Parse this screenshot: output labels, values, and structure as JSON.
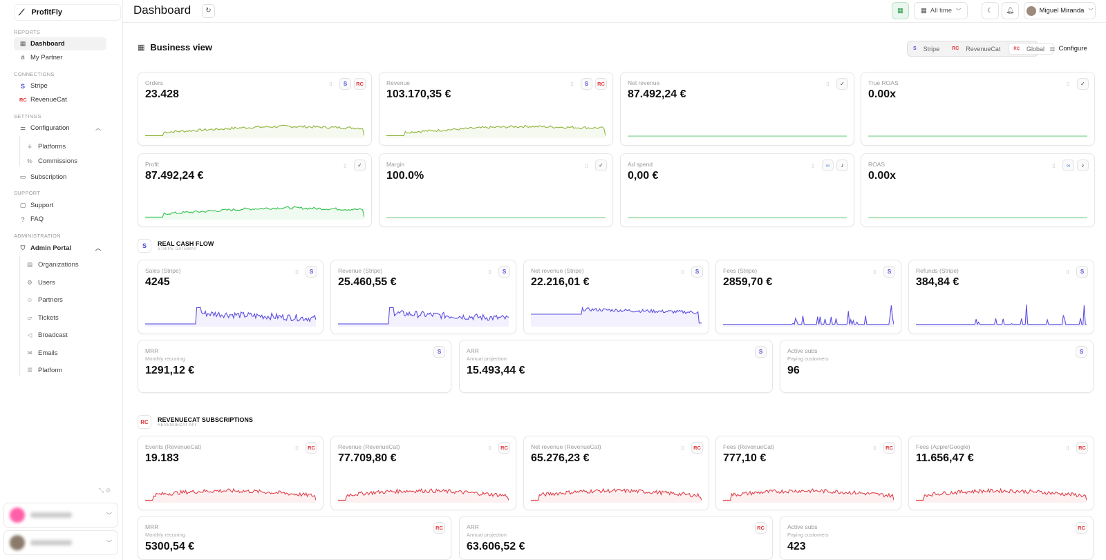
{
  "app": {
    "name": "ProfitFly"
  },
  "sidebar": {
    "sections": {
      "reports": "REPORTS",
      "connections": "CONNECTIONS",
      "settings": "SETTINGS",
      "support": "SUPPORT",
      "administration": "ADMINISTRATION"
    },
    "items": {
      "dashboard": "Dashboard",
      "my_partner": "My Partner",
      "stripe": "Stripe",
      "revenuecat": "RevenueCat",
      "configuration": "Configuration",
      "platforms": "Platforms",
      "commissions": "Commissions",
      "subscription": "Subscription",
      "support": "Support",
      "faq": "FAQ",
      "admin_portal": "Admin Portal",
      "organizations": "Organizations",
      "users": "Users",
      "partners": "Partners",
      "tickets": "Tickets",
      "broadcast": "Broadcast",
      "emails": "Emails",
      "platform": "Platform"
    }
  },
  "header": {
    "title": "Dashboard",
    "date_range": "All time",
    "user_name": "Miguel Miranda"
  },
  "business_view": {
    "title": "Business view",
    "sources": [
      "Stripe",
      "RevenueCat",
      "Global"
    ],
    "active_source": "Global",
    "configure": "Configure"
  },
  "global_cards": [
    {
      "label": "Orders",
      "value": "23.428",
      "badges": [
        "copy",
        "stripe",
        "revenuecat"
      ]
    },
    {
      "label": "Revenue",
      "value": "103.170,35 €",
      "badges": [
        "copy",
        "stripe",
        "revenuecat"
      ]
    },
    {
      "label": "Net revenue",
      "value": "87.492,24 €",
      "badges": [
        "copy",
        "check"
      ]
    },
    {
      "label": "True ROAS",
      "value": "0.00x",
      "badges": [
        "copy",
        "check"
      ]
    },
    {
      "label": "Profit",
      "value": "87.492,24 €",
      "badges": [
        "copy",
        "check"
      ]
    },
    {
      "label": "Margin",
      "value": "100.0%",
      "badges": [
        "copy",
        "check"
      ]
    },
    {
      "label": "Ad spend",
      "value": "0,00 €",
      "badges": [
        "copy",
        "meta",
        "tiktok"
      ]
    },
    {
      "label": "ROAS",
      "value": "0.00x",
      "badges": [
        "copy",
        "meta",
        "tiktok"
      ]
    }
  ],
  "stripe_group": {
    "title": "REAL CASH FLOW",
    "subtitle": "STRIPE GATEWAY",
    "icon": "S"
  },
  "stripe_cards": [
    {
      "label": "Sales (Stripe)",
      "value": "4245"
    },
    {
      "label": "Revenue (Stripe)",
      "value": "25.460,55 €"
    },
    {
      "label": "Net revenue (Stripe)",
      "value": "22.216,01 €"
    },
    {
      "label": "Fees (Stripe)",
      "value": "2859,70 €"
    },
    {
      "label": "Refunds (Stripe)",
      "value": "384,84 €"
    }
  ],
  "stripe_summary": [
    {
      "label": "MRR",
      "sublabel": "Monthly recurring",
      "value": "1291,12 €"
    },
    {
      "label": "ARR",
      "sublabel": "Annual projection",
      "value": "15.493,44 €"
    },
    {
      "label": "Active subs",
      "sublabel": "Paying customers",
      "value": "96"
    }
  ],
  "rc_group": {
    "title": "REVENUECAT SUBSCRIPTIONS",
    "subtitle": "REVENUECAT API",
    "icon": "RC"
  },
  "rc_cards": [
    {
      "label": "Events (RevenueCat)",
      "value": "19.183"
    },
    {
      "label": "Revenue (RevenueCat)",
      "value": "77.709,80 €"
    },
    {
      "label": "Net revenue (RevenueCat)",
      "value": "65.276,23 €"
    },
    {
      "label": "Fees (RevenueCat)",
      "value": "777,10 €"
    },
    {
      "label": "Fees (Apple/Google)",
      "value": "11.656,47 €"
    }
  ],
  "rc_summary": [
    {
      "label": "MRR",
      "sublabel": "Monthly recurring",
      "value": "5300,54 €"
    },
    {
      "label": "ARR",
      "sublabel": "Annual projection",
      "value": "63.606,52 €"
    },
    {
      "label": "Active subs",
      "sublabel": "Paying customers",
      "value": "423"
    }
  ],
  "colors": {
    "olive": "#8fb43a",
    "green": "#2ec04a",
    "flat": "#7fcf8f",
    "purple": "#5a4de0",
    "red": "#e0404a",
    "stripe": "#4a4ad8",
    "revenuecat": "#e23a3a"
  },
  "icons": {
    "stripe": "S",
    "revenuecat": "RC",
    "meta": "∞",
    "tiktok": "♪",
    "check": "✓",
    "copy": "▯"
  }
}
